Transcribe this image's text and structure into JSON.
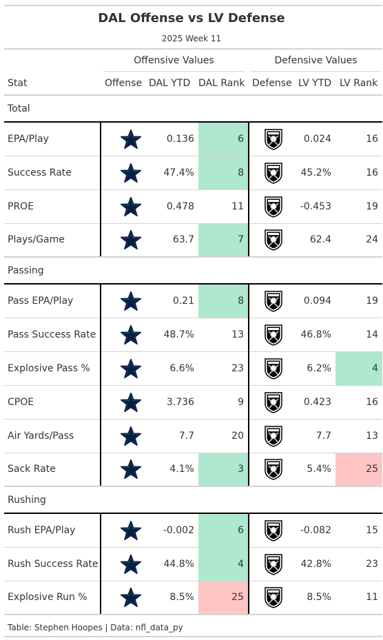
{
  "title": "DAL Offense vs LV Defense",
  "subtitle": "2025 Week 11",
  "spanners": {
    "offense": "Offensive Values",
    "defense": "Defensive Values"
  },
  "columns": {
    "stat": "Stat",
    "offense": "Offense",
    "dal_ytd": "DAL YTD",
    "dal_rank": "DAL Rank",
    "defense": "Defense",
    "lv_ytd": "LV YTD",
    "lv_rank": "LV Rank"
  },
  "colors": {
    "good": "#b0e8cf",
    "bad": "#ffc4c4",
    "cowboys_navy": "#041e42",
    "raiders_black": "#000000"
  },
  "icons": {
    "offense": "cowboys-star-icon",
    "defense": "raiders-shield-icon"
  },
  "groups": [
    {
      "name": "Total",
      "rows": [
        {
          "stat": "EPA/Play",
          "dal_ytd": "0.136",
          "dal_rank": "6",
          "dal_hl": "good",
          "lv_ytd": "0.024",
          "lv_rank": "16",
          "lv_hl": ""
        },
        {
          "stat": "Success Rate",
          "dal_ytd": "47.4%",
          "dal_rank": "8",
          "dal_hl": "good",
          "lv_ytd": "45.2%",
          "lv_rank": "16",
          "lv_hl": ""
        },
        {
          "stat": "PROE",
          "dal_ytd": "0.478",
          "dal_rank": "11",
          "dal_hl": "",
          "lv_ytd": "-0.453",
          "lv_rank": "19",
          "lv_hl": ""
        },
        {
          "stat": "Plays/Game",
          "dal_ytd": "63.7",
          "dal_rank": "7",
          "dal_hl": "good",
          "lv_ytd": "62.4",
          "lv_rank": "24",
          "lv_hl": ""
        }
      ]
    },
    {
      "name": "Passing",
      "rows": [
        {
          "stat": "Pass EPA/Play",
          "dal_ytd": "0.21",
          "dal_rank": "8",
          "dal_hl": "good",
          "lv_ytd": "0.094",
          "lv_rank": "19",
          "lv_hl": ""
        },
        {
          "stat": "Pass Success Rate",
          "dal_ytd": "48.7%",
          "dal_rank": "13",
          "dal_hl": "",
          "lv_ytd": "46.8%",
          "lv_rank": "14",
          "lv_hl": ""
        },
        {
          "stat": "Explosive Pass %",
          "dal_ytd": "6.6%",
          "dal_rank": "23",
          "dal_hl": "",
          "lv_ytd": "6.2%",
          "lv_rank": "4",
          "lv_hl": "good"
        },
        {
          "stat": "CPOE",
          "dal_ytd": "3.736",
          "dal_rank": "9",
          "dal_hl": "",
          "lv_ytd": "0.423",
          "lv_rank": "16",
          "lv_hl": ""
        },
        {
          "stat": "Air Yards/Pass",
          "dal_ytd": "7.7",
          "dal_rank": "20",
          "dal_hl": "",
          "lv_ytd": "7.7",
          "lv_rank": "13",
          "lv_hl": ""
        },
        {
          "stat": "Sack Rate",
          "dal_ytd": "4.1%",
          "dal_rank": "3",
          "dal_hl": "good",
          "lv_ytd": "5.4%",
          "lv_rank": "25",
          "lv_hl": "bad"
        }
      ]
    },
    {
      "name": "Rushing",
      "rows": [
        {
          "stat": "Rush EPA/Play",
          "dal_ytd": "-0.002",
          "dal_rank": "6",
          "dal_hl": "good",
          "lv_ytd": "-0.082",
          "lv_rank": "15",
          "lv_hl": ""
        },
        {
          "stat": "Rush Success Rate",
          "dal_ytd": "44.8%",
          "dal_rank": "4",
          "dal_hl": "good",
          "lv_ytd": "42.8%",
          "lv_rank": "23",
          "lv_hl": ""
        },
        {
          "stat": "Explosive Run %",
          "dal_ytd": "8.5%",
          "dal_rank": "25",
          "dal_hl": "bad",
          "lv_ytd": "8.5%",
          "lv_rank": "11",
          "lv_hl": ""
        }
      ]
    }
  ],
  "footer": "Table: Stephen Hoopes | Data: nfl_data_py"
}
